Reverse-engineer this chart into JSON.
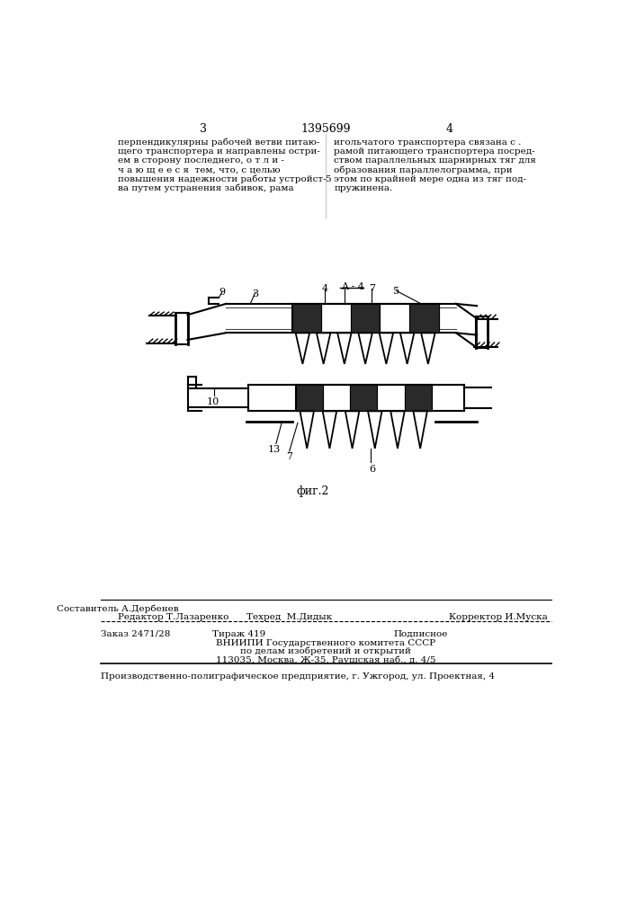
{
  "bg_color": "#ffffff",
  "page_number_left": "3",
  "page_number_center": "1395699",
  "page_number_right": "4",
  "left_text_lines": [
    "перпендикулярны рабочей ветви питаю-",
    "щего транспортера и направлены остри-",
    "ем в сторону последнего, о т л и -",
    "ч а ю щ е е с я  тем, что, с целью",
    "повышения надежности работы устройст-",
    "ва путем устранения забивок, рама"
  ],
  "right_text_lines": [
    "игольчатого транспортера связана с .",
    "рамой питающего транспортера посред-",
    "ством параллельных шарнирных тяг для",
    "образования параллелограмма, при",
    "этом по крайней мере одна из тяг под-",
    "пружинена."
  ],
  "center_number": "5",
  "footer_line1_left": "Редактор Т.Лазаренко",
  "footer_line1_center_top": "Составитель А.Дербенев",
  "footer_line1_center_bottom": "Техред  М.Дидык",
  "footer_line1_right": "Корректор И.Муска",
  "footer_line2_left": "Заказ 2471/28",
  "footer_line2_center": "Тираж 419",
  "footer_line2_right": "Подписное",
  "footer_line3": "ВНИИПИ Государственного комитета СССР",
  "footer_line4": "по делам изобретений и открытий",
  "footer_line5": "113035, Москва, Ж-35, Раушская наб., д. 4/5",
  "footer_line6": "Производственно-полиграфическое предприятие, г. Ужгород, ул. Проектная, 4",
  "fig_caption": "фиг.2"
}
